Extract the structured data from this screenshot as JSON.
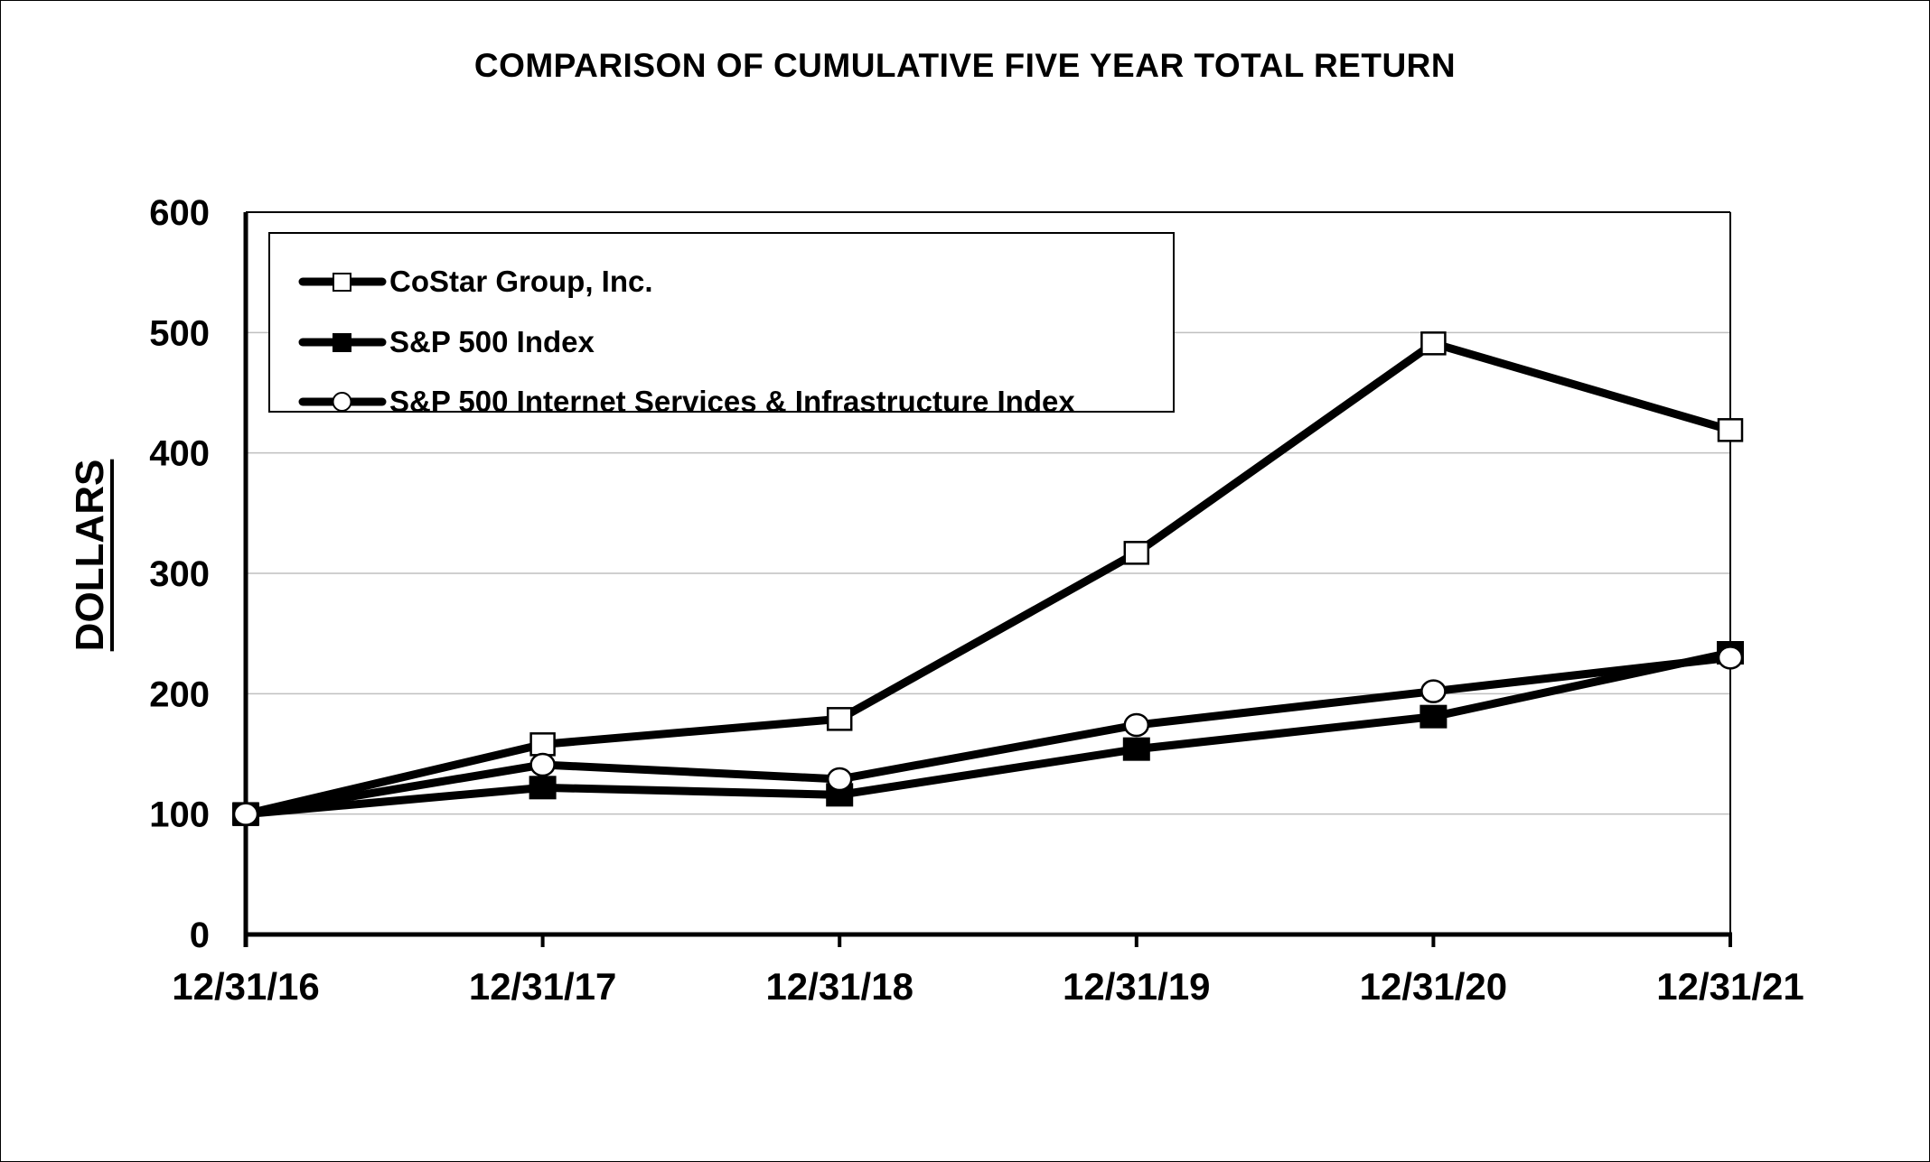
{
  "title": "COMPARISON OF CUMULATIVE FIVE YEAR TOTAL RETURN",
  "y_axis_label": "DOLLARS",
  "chart_data": {
    "type": "line",
    "title": "COMPARISON OF CUMULATIVE FIVE YEAR TOTAL RETURN",
    "xlabel": "",
    "ylabel": "DOLLARS",
    "categories": [
      "12/31/16",
      "12/31/17",
      "12/31/18",
      "12/31/19",
      "12/31/20",
      "12/31/21"
    ],
    "ylim": [
      0,
      600
    ],
    "yticks": [
      0,
      100,
      200,
      300,
      400,
      500,
      600
    ],
    "grid": true,
    "legend_position": "upper left (inside plot)",
    "series": [
      {
        "name": "CoStar Group, Inc.",
        "marker": "open-square",
        "values": [
          100,
          158,
          179,
          317,
          491,
          419
        ]
      },
      {
        "name": "S&P 500 Index",
        "marker": "filled-square",
        "values": [
          100,
          122,
          116,
          154,
          181,
          234
        ]
      },
      {
        "name": "S&P 500 Internet Services & Infrastructure Index",
        "marker": "open-circle",
        "values": [
          100,
          141,
          129,
          174,
          202,
          230
        ]
      }
    ]
  },
  "colors": {
    "line": "#000000",
    "grid": "#bfbfbf",
    "background": "#ffffff"
  }
}
